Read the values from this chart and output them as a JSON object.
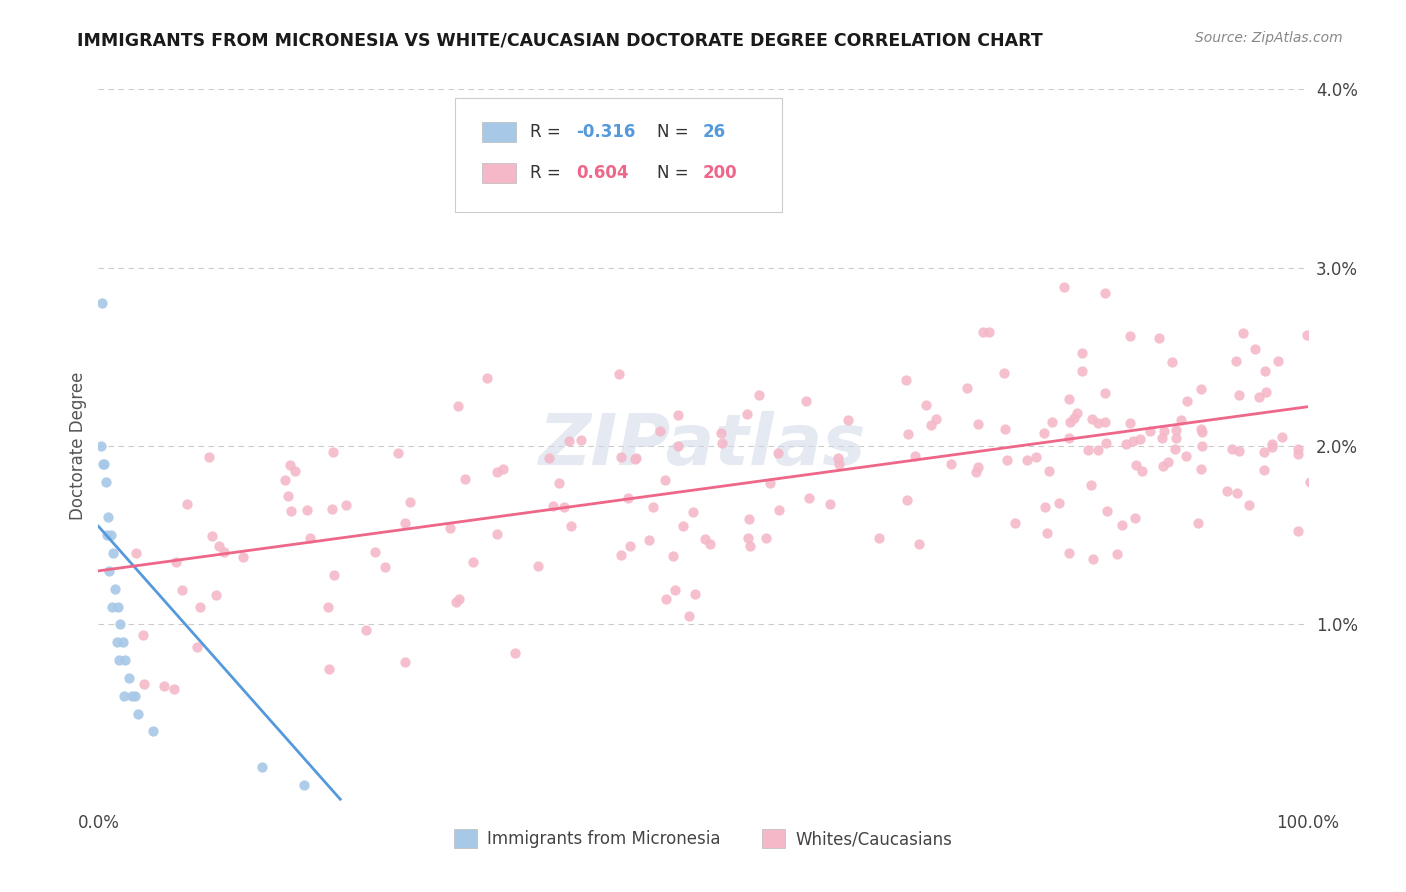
{
  "title": "IMMIGRANTS FROM MICRONESIA VS WHITE/CAUCASIAN DOCTORATE DEGREE CORRELATION CHART",
  "source": "Source: ZipAtlas.com",
  "ylabel": "Doctorate Degree",
  "legend_label1": "Immigrants from Micronesia",
  "legend_label2": "Whites/Caucasians",
  "R1": -0.316,
  "N1": 26,
  "R2": 0.604,
  "N2": 200,
  "color_blue_scatter": "#a8c8e8",
  "color_pink_scatter": "#f5b8c8",
  "color_line_blue": "#5599dd",
  "color_line_pink": "#ee6688",
  "bg_color": "#ffffff",
  "grid_color": "#cccccc",
  "blue_x": [
    0.4,
    0.6,
    0.8,
    1.0,
    1.2,
    1.4,
    1.6,
    1.8,
    2.0,
    2.2,
    2.5,
    2.8,
    3.0,
    3.3,
    0.3,
    0.5,
    0.7,
    0.9,
    1.1,
    1.5,
    1.7,
    2.1,
    0.2,
    4.5,
    13.5,
    17.0
  ],
  "blue_y": [
    1.9,
    1.8,
    1.6,
    1.5,
    1.4,
    1.2,
    1.1,
    1.0,
    0.9,
    0.8,
    0.7,
    0.6,
    0.6,
    0.5,
    2.8,
    1.9,
    1.5,
    1.3,
    1.1,
    0.9,
    0.8,
    0.6,
    2.0,
    0.4,
    0.2,
    0.1
  ],
  "blue_line_x0": 0.0,
  "blue_line_x1": 20.0,
  "blue_line_y0": 1.55,
  "blue_line_y1": 0.02,
  "pink_line_x0": 0.0,
  "pink_line_x1": 100.0,
  "pink_line_y0": 1.3,
  "pink_line_y1": 2.22,
  "watermark": "ZIPatlas",
  "watermark_color": "#d0d8e8",
  "xtick_labels": [
    "0.0%",
    "100.0%"
  ],
  "ytick_vals": [
    1.0,
    2.0,
    3.0,
    4.0
  ],
  "ytick_labels": [
    "1.0%",
    "2.0%",
    "3.0%",
    "4.0%"
  ],
  "ylim": [
    0.0,
    4.0
  ],
  "xlim": [
    0.0,
    100.0
  ]
}
